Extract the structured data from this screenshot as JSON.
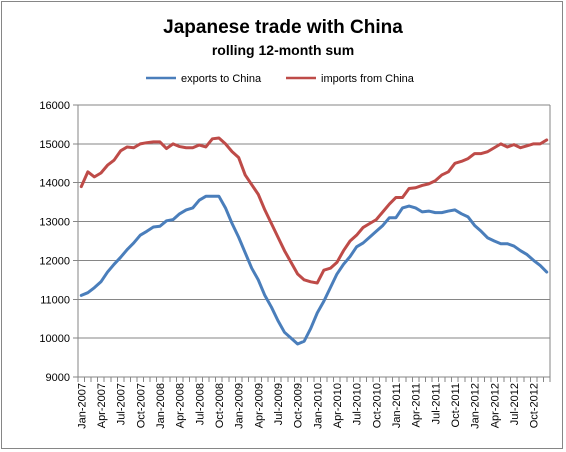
{
  "chart_data": {
    "type": "line",
    "title": "Japanese trade with China",
    "subtitle": "rolling 12-month sum",
    "xlabel": "",
    "ylabel": "",
    "ylim": [
      9000,
      16000
    ],
    "y_ticks": [
      "9000",
      "10000",
      "11000",
      "12000",
      "13000",
      "14000",
      "15000",
      "16000"
    ],
    "x_tick_labels": [
      "Jan-2007",
      "Apr-2007",
      "Jul-2007",
      "Oct-2007",
      "Jan-2008",
      "Apr-2008",
      "Jul-2008",
      "Oct-2008",
      "Jan-2009",
      "Apr-2009",
      "Jul-2009",
      "Oct-2009",
      "Jan-2010",
      "Apr-2010",
      "Jul-2010",
      "Oct-2010",
      "Jan-2011",
      "Apr-2011",
      "Jul-2011",
      "Oct-2011",
      "Jan-2012",
      "Apr-2012",
      "Jul-2012",
      "Oct-2012"
    ],
    "grid": "horizontal",
    "legend_position": "top",
    "series": [
      {
        "name": "exports to China",
        "color": "#4a7ebb",
        "values": [
          11100,
          11170,
          11300,
          11450,
          11700,
          11900,
          12080,
          12280,
          12450,
          12650,
          12750,
          12860,
          12880,
          13020,
          13050,
          13200,
          13300,
          13350,
          13550,
          13650,
          13650,
          13650,
          13350,
          12950,
          12600,
          12200,
          11800,
          11500,
          11100,
          10800,
          10450,
          10150,
          10000,
          9850,
          9920,
          10250,
          10650,
          10950,
          11300,
          11650,
          11900,
          12100,
          12350,
          12450,
          12600,
          12750,
          12900,
          13100,
          13100,
          13350,
          13400,
          13350,
          13250,
          13270,
          13230,
          13230,
          13270,
          13300,
          13200,
          13120,
          12900,
          12750,
          12580,
          12500,
          12430,
          12430,
          12370,
          12250,
          12150,
          12000,
          11870,
          11700
        ]
      },
      {
        "name": "imports from China",
        "color": "#be4b48",
        "values": [
          13900,
          14280,
          14150,
          14250,
          14450,
          14580,
          14820,
          14920,
          14900,
          15000,
          15030,
          15050,
          15050,
          14880,
          15000,
          14930,
          14900,
          14900,
          14970,
          14920,
          15130,
          15150,
          15000,
          14800,
          14650,
          14200,
          13950,
          13700,
          13300,
          12950,
          12600,
          12250,
          11950,
          11650,
          11500,
          11450,
          11420,
          11750,
          11800,
          11950,
          12250,
          12500,
          12650,
          12850,
          12950,
          13050,
          13250,
          13450,
          13620,
          13620,
          13850,
          13870,
          13930,
          13970,
          14050,
          14200,
          14280,
          14500,
          14550,
          14620,
          14750,
          14750,
          14800,
          14900,
          15000,
          14920,
          14980,
          14900,
          14950,
          15000,
          15000,
          15100
        ]
      }
    ]
  }
}
